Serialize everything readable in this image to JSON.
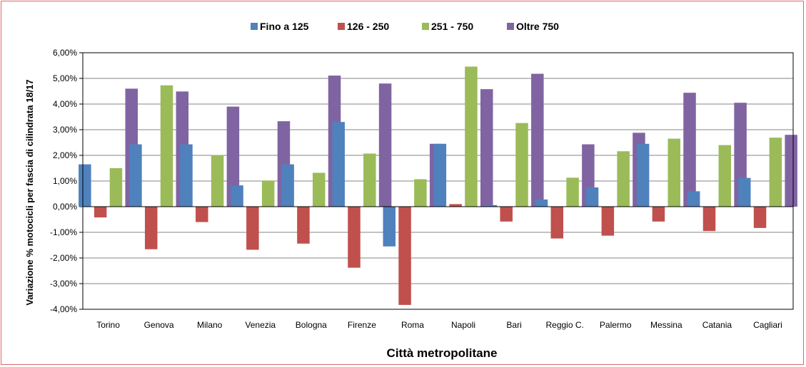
{
  "chart_data": {
    "type": "bar",
    "categories": [
      "Torino",
      "Genova",
      "Milano",
      "Venezia",
      "Bologna",
      "Firenze",
      "Roma",
      "Napoli",
      "Bari",
      "Reggio C.",
      "Palermo",
      "Messina",
      "Catania",
      "Cagliari"
    ],
    "series": [
      {
        "name": "Fino a 125",
        "color": "#4f81bd",
        "values": [
          1.65,
          2.43,
          2.43,
          0.83,
          1.65,
          3.3,
          -1.55,
          2.45,
          0.06,
          0.28,
          0.75,
          2.45,
          0.6,
          1.12
        ]
      },
      {
        "name": "126 - 250",
        "color": "#c0504d",
        "values": [
          -0.42,
          -1.66,
          -0.6,
          -1.68,
          -1.44,
          -2.38,
          -3.83,
          0.1,
          -0.58,
          -1.24,
          -1.13,
          -0.58,
          -0.95,
          -0.83
        ]
      },
      {
        "name": "251 - 750",
        "color": "#9bbb59",
        "values": [
          1.5,
          4.73,
          2.01,
          1.02,
          1.32,
          2.07,
          1.07,
          5.46,
          3.26,
          1.13,
          2.16,
          2.65,
          2.4,
          2.69
        ]
      },
      {
        "name": "Oltre 750",
        "color": "#8064a2",
        "values": [
          4.6,
          4.49,
          3.9,
          3.33,
          5.11,
          4.8,
          2.45,
          4.58,
          5.18,
          2.43,
          2.88,
          4.44,
          4.05,
          2.8
        ]
      }
    ],
    "y_ticks": [
      "6,00%",
      "5,00%",
      "4,00%",
      "3,00%",
      "2,00%",
      "1,00%",
      "0,00%",
      "-1,00%",
      "-2,00%",
      "-3,00%",
      "-4,00%"
    ],
    "ylim": [
      -4,
      6
    ],
    "y_step": 1,
    "xlabel": "Città metropolitane",
    "ylabel": "Variazione % motocicli per fascia di cilindrata 18/17",
    "legend_position": "top",
    "grid": true
  }
}
